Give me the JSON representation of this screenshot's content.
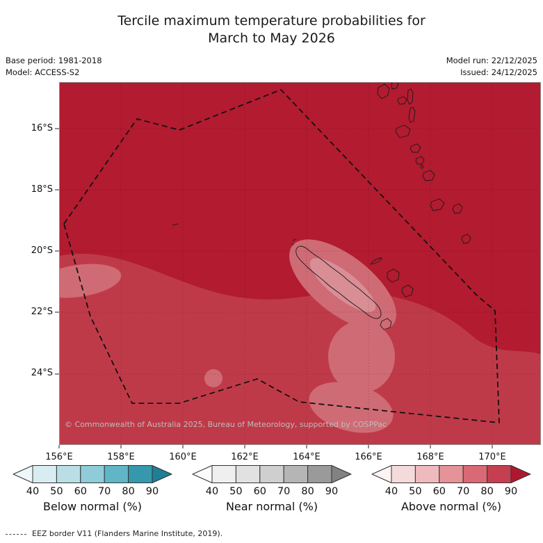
{
  "title": {
    "line1": "Tercile maximum temperature probabilities for",
    "line2": "March to May 2026"
  },
  "meta": {
    "base_period": "Base period: 1981-2018",
    "model": "Model: ACCESS-S2",
    "model_run": "Model run: 22/12/2025",
    "issued": "Issued: 24/12/2025"
  },
  "map": {
    "lat_labels": [
      "16°S",
      "18°S",
      "20°S",
      "22°S",
      "24°S"
    ],
    "lon_labels": [
      "156°E",
      "158°E",
      "160°E",
      "162°E",
      "164°E",
      "166°E",
      "168°E",
      "170°E"
    ],
    "copyright": "© Commonwealth of Australia 2025, Bureau of Meteorology, supported by COSPPac",
    "colors": {
      "prob_gt90": "#b21b30",
      "prob_80_90": "#bf3a49",
      "prob_70_80": "#cf6b75",
      "prob_60_70": "#d98e96",
      "eez_border": "#111111",
      "island_outline": "#1a1a1a",
      "gridline": "rgba(45,0,10,0.30)",
      "frame": "#8f8f8f"
    }
  },
  "legend": {
    "ticks": [
      "40",
      "50",
      "60",
      "70",
      "80",
      "90"
    ],
    "bars": [
      {
        "id": "below-normal",
        "label": "Below normal (%)",
        "colors": [
          "#eef8fa",
          "#d8edf1",
          "#b9dee6",
          "#8eccd8",
          "#60b5c6",
          "#3698ad",
          "#1f7f97"
        ]
      },
      {
        "id": "near-normal",
        "label": "Near normal (%)",
        "colors": [
          "#fbfbfb",
          "#efefef",
          "#e1e1e1",
          "#cfcfcf",
          "#b5b5b5",
          "#9a9a9a",
          "#828282"
        ]
      },
      {
        "id": "above-normal",
        "label": "Above normal (%)",
        "colors": [
          "#fdf3f3",
          "#f5dadb",
          "#eebabe",
          "#e59399",
          "#d96974",
          "#c63f51",
          "#ad1830"
        ]
      }
    ]
  },
  "footnote": {
    "eez_note": "EEZ border V11 (Flanders Marine Institute, 2019)."
  },
  "chart_data": {
    "type": "heatmap",
    "title": "Tercile maximum temperature probabilities for March to May 2026",
    "x_tick_labels": [
      "156°E",
      "158°E",
      "160°E",
      "162°E",
      "164°E",
      "166°E",
      "168°E",
      "170°E"
    ],
    "y_tick_labels": [
      "16°S",
      "18°S",
      "20°S",
      "22°S",
      "24°S"
    ],
    "legend_scales": [
      {
        "name": "Below normal (%)",
        "ticks": [
          40,
          50,
          60,
          70,
          80,
          90
        ]
      },
      {
        "name": "Near normal (%)",
        "ticks": [
          40,
          50,
          60,
          70,
          80,
          90
        ]
      },
      {
        "name": "Above normal (%)",
        "ticks": [
          40,
          50,
          60,
          70,
          80,
          90
        ]
      }
    ],
    "depicted": "Whole New Caledonia EEZ region shaded in 'Above normal' reds: mostly >90% probability, with lighter 70-90% areas in the south-west, around Grande Terre and along the southern EEZ edge"
  }
}
